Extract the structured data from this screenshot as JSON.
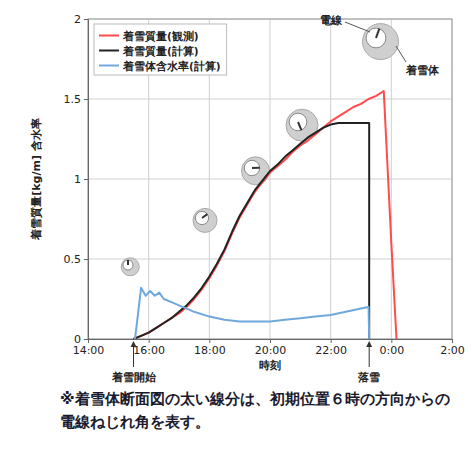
{
  "chart_data": {
    "type": "line",
    "x_label": "時刻",
    "y_label": "着雪質量[kg/m] 含水率",
    "xlim": [
      14,
      26
    ],
    "xticks": [
      {
        "value": 14,
        "label": "14:00"
      },
      {
        "value": 16,
        "label": "16:00"
      },
      {
        "value": 18,
        "label": "18:00"
      },
      {
        "value": 20,
        "label": "20:00"
      },
      {
        "value": 22,
        "label": "22:00"
      },
      {
        "value": 24,
        "label": "0:00"
      },
      {
        "value": 26,
        "label": "2:00"
      }
    ],
    "ylim": [
      0,
      2
    ],
    "yticks": [
      0,
      0.5,
      1,
      1.5,
      2
    ],
    "grid": true,
    "legend": "top-left",
    "series": [
      {
        "name": "着雪質量(観測)",
        "color": "#ff4b4b",
        "x": [
          15.5,
          15.75,
          16,
          16.25,
          16.5,
          16.75,
          17,
          17.25,
          17.5,
          17.75,
          18,
          18.25,
          18.5,
          18.75,
          19,
          19.25,
          19.5,
          19.75,
          20,
          20.25,
          20.5,
          20.75,
          21,
          21.25,
          21.5,
          21.75,
          22,
          22.25,
          22.5,
          22.75,
          23,
          23.25,
          23.5,
          23.75,
          24,
          24.17
        ],
        "values": [
          0,
          0.02,
          0.04,
          0.07,
          0.1,
          0.13,
          0.16,
          0.2,
          0.25,
          0.31,
          0.38,
          0.46,
          0.55,
          0.66,
          0.76,
          0.84,
          0.92,
          0.98,
          1.04,
          1.08,
          1.12,
          1.17,
          1.21,
          1.24,
          1.28,
          1.32,
          1.36,
          1.39,
          1.42,
          1.45,
          1.47,
          1.5,
          1.52,
          1.55,
          0.6,
          0
        ]
      },
      {
        "name": "着雪質量(計算)",
        "color": "#222222",
        "x": [
          15.5,
          15.75,
          16,
          16.25,
          16.5,
          16.75,
          17,
          17.25,
          17.5,
          17.75,
          18,
          18.25,
          18.5,
          18.75,
          19,
          19.25,
          19.5,
          19.75,
          20,
          20.25,
          20.5,
          20.75,
          21,
          21.25,
          21.5,
          21.75,
          22,
          22.25,
          22.5,
          23,
          23.27,
          23.27
        ],
        "values": [
          0,
          0.02,
          0.04,
          0.07,
          0.1,
          0.13,
          0.17,
          0.21,
          0.26,
          0.32,
          0.39,
          0.47,
          0.56,
          0.67,
          0.77,
          0.85,
          0.93,
          0.99,
          1.05,
          1.09,
          1.14,
          1.18,
          1.22,
          1.26,
          1.29,
          1.32,
          1.34,
          1.35,
          1.35,
          1.35,
          1.35,
          0
        ]
      },
      {
        "name": "着雪体含水率(計算)",
        "color": "#6fa8dc",
        "x": [
          15.55,
          15.75,
          15.9,
          16.05,
          16.2,
          16.35,
          16.5,
          16.75,
          17,
          17.5,
          18,
          18.5,
          19,
          19.5,
          20,
          20.5,
          21,
          21.5,
          22,
          22.5,
          23,
          23.25,
          23.27
        ],
        "values": [
          0,
          0.32,
          0.27,
          0.3,
          0.27,
          0.29,
          0.25,
          0.23,
          0.21,
          0.17,
          0.14,
          0.12,
          0.11,
          0.11,
          0.11,
          0.12,
          0.13,
          0.14,
          0.15,
          0.17,
          0.19,
          0.2,
          0
        ]
      }
    ],
    "annotations": [
      {
        "text": "着雪開始",
        "x": 15.5
      },
      {
        "text": "落雪",
        "x": 23.27
      }
    ],
    "diagram_labels": {
      "wire": "電線",
      "snow": "着雪体"
    },
    "note": "※着雪体断面図の太い線分は、初期位置６時の方向からの電線ねじれ角を表す。"
  }
}
